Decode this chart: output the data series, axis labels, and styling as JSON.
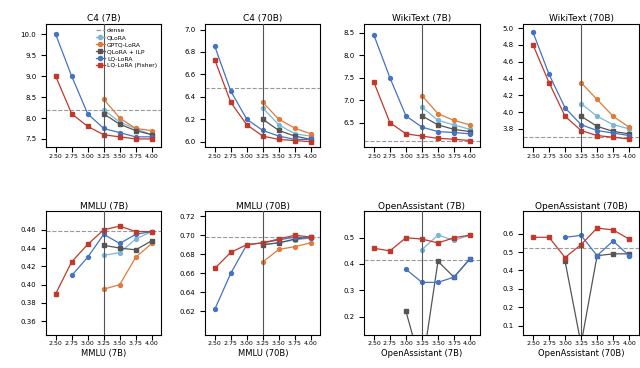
{
  "x": [
    2.5,
    2.75,
    3.0,
    3.25,
    3.5,
    3.75,
    4.0
  ],
  "colors": {
    "dense": "#999999",
    "QLoRA": "#7ab8d9",
    "GPTQ-LoRA": "#e07b39",
    "QLoRA+ILP": "#555555",
    "LQ-LoRA": "#4472c4",
    "LQ-LoRA-F": "#c0392b"
  },
  "markers": {
    "dense": "none",
    "QLoRA": "o",
    "GPTQ-LoRA": "o",
    "QLoRA+ILP": "s",
    "LQ-LoRA": "o",
    "LQ-LoRA-F": "s"
  },
  "linestyles": {
    "dense": "--",
    "QLoRA": "-",
    "GPTQ-LoRA": "-",
    "QLoRA+ILP": "-",
    "LQ-LoRA": "-",
    "LQ-LoRA-F": "-"
  },
  "legend_labels": {
    "dense": "dense",
    "QLoRA": "QLoRA",
    "GPTQ-LoRA": "GPTQ-LoRA",
    "QLoRA+ILP": "QLoRA + ILP",
    "LQ-LoRA": "LQ-LoRA",
    "LQ-LoRA-F": "LQ-LoRA (Fisher)"
  },
  "series_order": [
    "dense",
    "QLoRA",
    "GPTQ-LoRA",
    "QLoRA+ILP",
    "LQ-LoRA",
    "LQ-LoRA-F"
  ],
  "subplots": [
    {
      "title": "C4 (7B)",
      "xlabel": "",
      "ylim": [
        7.3,
        10.25
      ],
      "yticks": [
        7.5,
        8.0,
        8.5,
        9.0,
        9.5,
        10.0
      ],
      "dense": 8.2,
      "QLoRA": [
        null,
        null,
        null,
        8.2,
        7.9,
        7.75,
        7.6
      ],
      "GPTQ-LoRA": [
        null,
        null,
        null,
        8.45,
        8.0,
        7.75,
        7.7
      ],
      "QLoRA+ILP": [
        null,
        null,
        null,
        8.1,
        7.85,
        7.7,
        7.6
      ],
      "LQ-LoRA": [
        10.0,
        9.0,
        8.1,
        7.75,
        7.65,
        7.55,
        7.55
      ],
      "LQ-LoRA-F": [
        9.0,
        8.1,
        7.8,
        7.6,
        7.55,
        7.5,
        7.5
      ],
      "show_legend": true
    },
    {
      "title": "C4 (70B)",
      "xlabel": "",
      "ylim": [
        5.95,
        7.05
      ],
      "yticks": [
        6.0,
        6.2,
        6.4,
        6.6,
        6.8,
        7.0
      ],
      "dense": 6.48,
      "QLoRA": [
        null,
        null,
        null,
        6.3,
        6.15,
        6.07,
        6.05
      ],
      "GPTQ-LoRA": [
        null,
        null,
        null,
        6.35,
        6.2,
        6.12,
        6.07
      ],
      "QLoRA+ILP": [
        null,
        null,
        null,
        6.2,
        6.1,
        6.05,
        6.02
      ],
      "LQ-LoRA": [
        6.85,
        6.45,
        6.2,
        6.1,
        6.05,
        6.02,
        6.02
      ],
      "LQ-LoRA-F": [
        6.73,
        6.35,
        6.15,
        6.05,
        6.02,
        6.01,
        6.0
      ],
      "show_legend": false
    },
    {
      "title": "WikiText (7B)",
      "xlabel": "",
      "ylim": [
        5.95,
        8.7
      ],
      "yticks": [
        6.5,
        7.0,
        7.5,
        8.0,
        8.5
      ],
      "dense": 6.1,
      "QLoRA": [
        null,
        null,
        null,
        6.85,
        6.55,
        6.45,
        6.35
      ],
      "GPTQ-LoRA": [
        null,
        null,
        null,
        7.1,
        6.7,
        6.55,
        6.45
      ],
      "QLoRA+ILP": [
        null,
        null,
        null,
        6.65,
        6.45,
        6.35,
        6.3
      ],
      "LQ-LoRA": [
        8.45,
        7.5,
        6.65,
        6.4,
        6.3,
        6.28,
        6.25
      ],
      "LQ-LoRA-F": [
        7.4,
        6.5,
        6.25,
        6.2,
        6.15,
        6.13,
        6.1
      ],
      "show_legend": false
    },
    {
      "title": "WikiText (70B)",
      "xlabel": "",
      "ylim": [
        3.58,
        5.05
      ],
      "yticks": [
        3.8,
        4.0,
        4.2,
        4.4,
        4.6,
        4.8,
        5.0
      ],
      "dense": 3.7,
      "QLoRA": [
        null,
        null,
        null,
        4.1,
        3.95,
        3.85,
        3.8
      ],
      "GPTQ-LoRA": [
        null,
        null,
        null,
        4.35,
        4.15,
        3.95,
        3.82
      ],
      "QLoRA+ILP": [
        null,
        null,
        null,
        3.95,
        3.83,
        3.77,
        3.74
      ],
      "LQ-LoRA": [
        4.95,
        4.45,
        4.05,
        3.85,
        3.78,
        3.75,
        3.72
      ],
      "LQ-LoRA-F": [
        4.8,
        4.35,
        3.95,
        3.78,
        3.72,
        3.7,
        3.68
      ],
      "show_legend": false
    },
    {
      "title": "MMLU (7B)",
      "xlabel": "MMLU (7B)",
      "ylim": [
        0.345,
        0.48
      ],
      "yticks": [
        0.36,
        0.38,
        0.4,
        0.42,
        0.44,
        0.46
      ],
      "dense": 0.459,
      "QLoRA": [
        null,
        null,
        null,
        0.432,
        0.435,
        0.45,
        0.458
      ],
      "GPTQ-LoRA": [
        null,
        null,
        null,
        0.395,
        0.4,
        0.43,
        0.445
      ],
      "QLoRA+ILP": [
        null,
        null,
        null,
        0.443,
        0.44,
        0.438,
        0.448
      ],
      "LQ-LoRA": [
        null,
        0.41,
        0.43,
        0.455,
        0.445,
        0.455,
        0.458
      ],
      "LQ-LoRA-F": [
        0.39,
        0.425,
        0.444,
        0.46,
        0.464,
        0.458,
        0.458
      ],
      "show_legend": false
    },
    {
      "title": "MMLU (70B)",
      "xlabel": "MMLU (70B)",
      "ylim": [
        0.595,
        0.725
      ],
      "yticks": [
        0.62,
        0.64,
        0.66,
        0.68,
        0.7,
        0.72
      ],
      "dense": 0.698,
      "QLoRA": [
        null,
        null,
        null,
        0.69,
        0.692,
        0.695,
        0.697
      ],
      "GPTQ-LoRA": [
        null,
        null,
        null,
        0.672,
        0.685,
        0.688,
        0.692
      ],
      "QLoRA+ILP": [
        null,
        null,
        null,
        0.69,
        0.692,
        0.696,
        0.698
      ],
      "LQ-LoRA": [
        0.622,
        0.66,
        0.69,
        0.692,
        0.695,
        0.698,
        0.697
      ],
      "LQ-LoRA-F": [
        0.665,
        0.682,
        0.69,
        0.692,
        0.696,
        0.7,
        0.698
      ],
      "show_legend": false
    },
    {
      "title": "OpenAssistant (7B)",
      "xlabel": "OpenAssistant (7B)",
      "ylim": [
        0.13,
        0.6
      ],
      "yticks": [
        0.2,
        0.3,
        0.4,
        0.5
      ],
      "dense": 0.415,
      "QLoRA": [
        null,
        null,
        null,
        0.455,
        0.51,
        0.49,
        0.51
      ],
      "GPTQ-LoRA": [
        null,
        null,
        null,
        null,
        null,
        null,
        null
      ],
      "QLoRA+ILP": [
        null,
        null,
        0.22,
        0.0,
        0.41,
        0.35,
        0.42
      ],
      "LQ-LoRA": [
        null,
        null,
        0.38,
        0.33,
        0.33,
        0.35,
        0.42
      ],
      "LQ-LoRA-F": [
        0.46,
        0.45,
        0.5,
        0.495,
        0.48,
        0.5,
        0.51
      ],
      "show_legend": false
    },
    {
      "title": "OpenAssistant (70B)",
      "xlabel": "OpenAssistant (70B)",
      "ylim": [
        0.05,
        0.72
      ],
      "yticks": [
        0.1,
        0.2,
        0.3,
        0.4,
        0.5,
        0.6
      ],
      "dense": 0.52,
      "QLoRA": [
        null,
        null,
        null,
        null,
        null,
        null,
        0.48
      ],
      "GPTQ-LoRA": [
        null,
        null,
        null,
        null,
        null,
        null,
        null
      ],
      "QLoRA+ILP": [
        null,
        null,
        0.45,
        0.0,
        0.48,
        0.49,
        0.49
      ],
      "LQ-LoRA": [
        null,
        null,
        0.58,
        0.59,
        0.48,
        0.56,
        0.48
      ],
      "LQ-LoRA-F": [
        0.58,
        0.58,
        0.47,
        0.54,
        0.63,
        0.62,
        0.57
      ],
      "show_legend": false
    }
  ],
  "vline_x": 3.25,
  "xticks": [
    2.5,
    2.75,
    3.0,
    3.25,
    3.5,
    3.75,
    4.0
  ],
  "xticklabels": [
    "2.50",
    "2.75",
    "3.00",
    "3.25",
    "3.50",
    "3.75",
    "4.00"
  ]
}
